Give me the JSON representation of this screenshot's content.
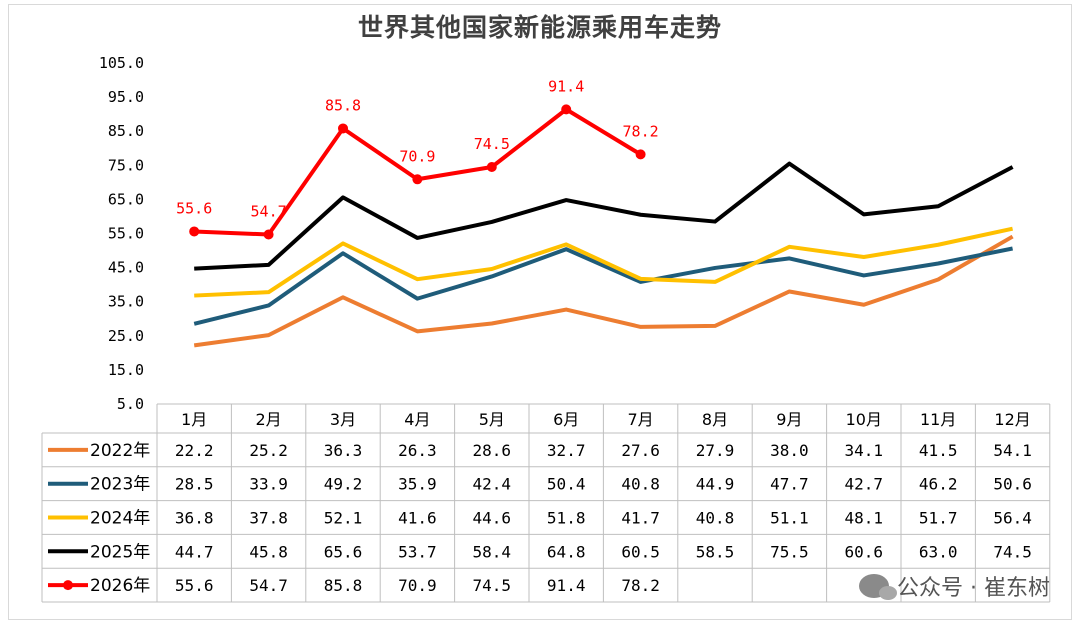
{
  "title": "世界其他国家新能源乘用车走势",
  "watermark": "公众号 · 崔东树",
  "chart_data": {
    "type": "line",
    "title": "世界其他国家新能源乘用车走势",
    "categories": [
      "1月",
      "2月",
      "3月",
      "4月",
      "5月",
      "6月",
      "7月",
      "8月",
      "9月",
      "10月",
      "11月",
      "12月"
    ],
    "y_ticks": [
      "105.0",
      "95.0",
      "85.0",
      "75.0",
      "65.0",
      "55.0",
      "45.0",
      "35.0",
      "25.0",
      "15.0",
      "5.0"
    ],
    "ylim": [
      5,
      105
    ],
    "grid": false,
    "legend": "data-table",
    "series": [
      {
        "name": "2022年",
        "color": "#ed7d31",
        "markers": false,
        "point_labels": false,
        "values": [
          22.2,
          25.2,
          36.3,
          26.3,
          28.6,
          32.7,
          27.6,
          27.9,
          38.0,
          34.1,
          41.5,
          54.1
        ]
      },
      {
        "name": "2023年",
        "color": "#1f5c7a",
        "markers": false,
        "point_labels": false,
        "values": [
          28.5,
          33.9,
          49.2,
          35.9,
          42.4,
          50.4,
          40.8,
          44.9,
          47.7,
          42.7,
          46.2,
          50.6
        ]
      },
      {
        "name": "2024年",
        "color": "#ffc000",
        "markers": false,
        "point_labels": false,
        "values": [
          36.8,
          37.8,
          52.1,
          41.6,
          44.6,
          51.8,
          41.7,
          40.8,
          51.1,
          48.1,
          51.7,
          56.4
        ]
      },
      {
        "name": "2025年",
        "color": "#000000",
        "markers": false,
        "point_labels": false,
        "values": [
          44.7,
          45.8,
          65.6,
          53.7,
          58.4,
          64.8,
          60.5,
          58.5,
          75.5,
          60.6,
          63.0,
          74.5
        ]
      },
      {
        "name": "2026年",
        "color": "#ff0000",
        "markers": true,
        "point_labels": true,
        "values": [
          55.6,
          54.7,
          85.8,
          70.9,
          74.5,
          91.4,
          78.2,
          null,
          null,
          null,
          null,
          null
        ]
      }
    ]
  }
}
